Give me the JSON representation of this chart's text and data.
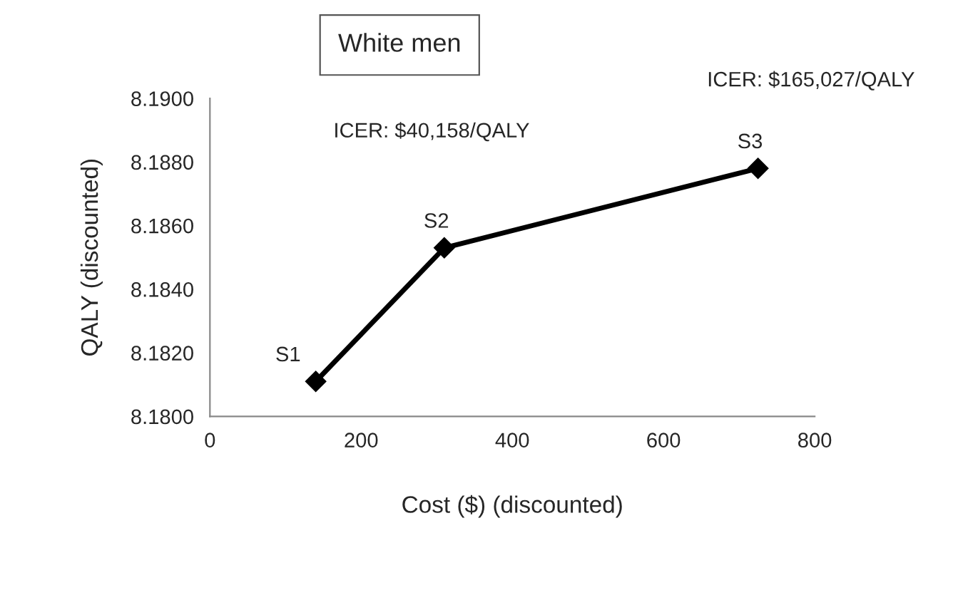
{
  "chart_data": {
    "type": "line",
    "title": "White men",
    "xlabel": "Cost ($) (discounted)",
    "ylabel": "QALY (discounted)",
    "x": [
      140,
      310,
      725
    ],
    "series": [
      {
        "color": "#000000",
        "values": [
          8.1811,
          8.1853,
          8.1878
        ]
      }
    ],
    "marker": "diamond",
    "line_style": "solid",
    "grid": false,
    "legend": false,
    "xlim": [
      0,
      800
    ],
    "xticks": [
      0,
      200,
      400,
      600,
      800
    ],
    "ylim": [
      8.18,
      8.19
    ],
    "yticks": [
      {
        "value": 8.18,
        "label": "8.1800"
      },
      {
        "value": 8.182,
        "label": "8.1820"
      },
      {
        "value": 8.184,
        "label": "8.1840"
      },
      {
        "value": 8.186,
        "label": "8.1860"
      },
      {
        "value": 8.188,
        "label": "8.1880"
      },
      {
        "value": 8.19,
        "label": "8.1900"
      }
    ],
    "annotations": [
      {
        "text": "S1",
        "x": 140,
        "y": 8.1811
      },
      {
        "text": "S2",
        "x": 310,
        "y": 8.1853
      },
      {
        "text": "S3",
        "x": 725,
        "y": 8.1878
      },
      "ICER: $40,158/QALY",
      "ICER: $165,027/QALY"
    ]
  }
}
